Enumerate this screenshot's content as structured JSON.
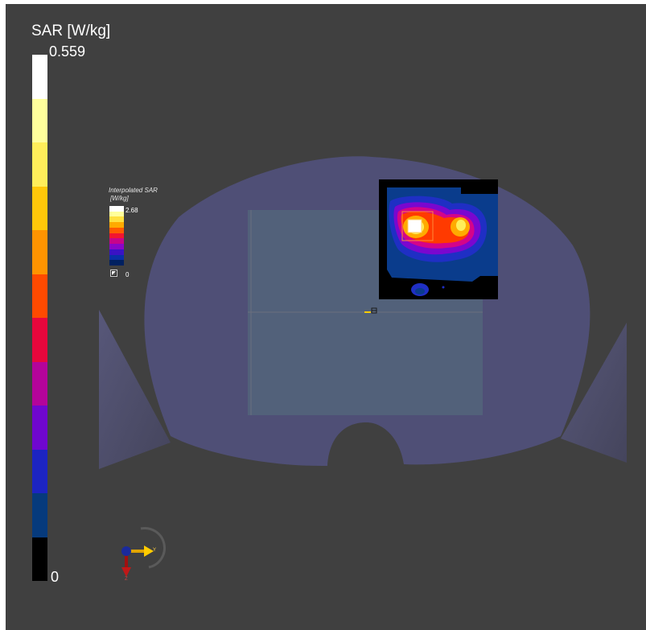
{
  "colorbar": {
    "title": "SAR [W/kg]",
    "max_label": "0.559",
    "min_label": "0",
    "colors": [
      "#ffffff",
      "#ffff9c",
      "#ffee5a",
      "#ffc80a",
      "#ff9400",
      "#ff4a00",
      "#e8073c",
      "#b4049a",
      "#6f07cf",
      "#1c24c2",
      "#063a7c",
      "#000000"
    ]
  },
  "interpolated_legend": {
    "title_line1": "Interpolated SAR",
    "title_line2": "[W/kg]",
    "max_label": "2.68",
    "min_label": "0",
    "colors": [
      "#ffffff",
      "#ffff9c",
      "#ffe040",
      "#ffaa00",
      "#ff5a00",
      "#f21530",
      "#c8048a",
      "#8a06c8",
      "#3a12c4",
      "#0a2ea8",
      "#002060"
    ]
  },
  "orientation": {
    "axis_y_label": "Y",
    "axis_z_label": "Z"
  },
  "colors": {
    "viewport_background": "#404040",
    "phantom_fill": "#4f4f76",
    "device_fill": "#52627a",
    "cross_section_lines": "#6b6e7d"
  }
}
